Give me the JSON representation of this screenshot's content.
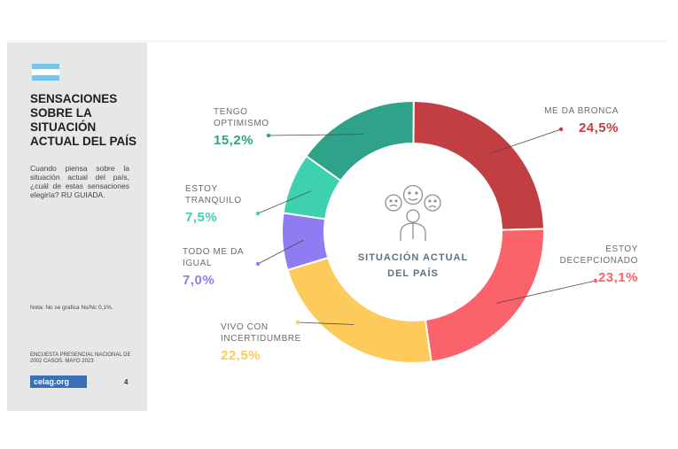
{
  "sidebar": {
    "title": "SENSACIONES SOBRE LA SITUACIÓN ACTUAL DEL PAÍS",
    "question": "Cuando piensa sobre la situación actual del país, ¿cuál de estas sensaciones elegiría? RU GUIADA.",
    "note": "Nota: No se grafica Ns/Nc 0,1%.",
    "source": "ENCUESTA PRESENCIAL NACIONAL DE 2002 CASOS. MAYO 2023",
    "logo": "celag.org",
    "page_number": "4"
  },
  "colors": {
    "flag_blue": "#74c6ec",
    "sidebar_bg": "#e7e7e7"
  },
  "chart_data": {
    "type": "pie",
    "donut": true,
    "center_label": [
      "SITUACIÓN ACTUAL",
      "DEL PAÍS"
    ],
    "center_icon": "three-faces-person-icon",
    "slices": [
      {
        "label": [
          "ME DA BRONCA"
        ],
        "value": 24.5,
        "value_text": "24,5%",
        "color": "#c13f42"
      },
      {
        "label": [
          "ESTOY",
          "DECEPCIONADO"
        ],
        "value": 23.1,
        "value_text": "23,1%",
        "color": "#fb636b"
      },
      {
        "label": [
          "VIVO CON",
          "INCERTIDUMBRE"
        ],
        "value": 22.5,
        "value_text": "22,5%",
        "color": "#fdcb5b"
      },
      {
        "label": [
          "TODO ME DA",
          "IGUAL"
        ],
        "value": 7.0,
        "value_text": "7,0%",
        "color": "#8f7cf2"
      },
      {
        "label": [
          "ESTOY",
          "TRANQUILO"
        ],
        "value": 7.5,
        "value_text": "7,5%",
        "color": "#3ed1ae"
      },
      {
        "label": [
          "TENGO",
          "OPTIMISMO"
        ],
        "value": 15.2,
        "value_text": "15,2%",
        "color": "#2ea38a"
      }
    ]
  }
}
